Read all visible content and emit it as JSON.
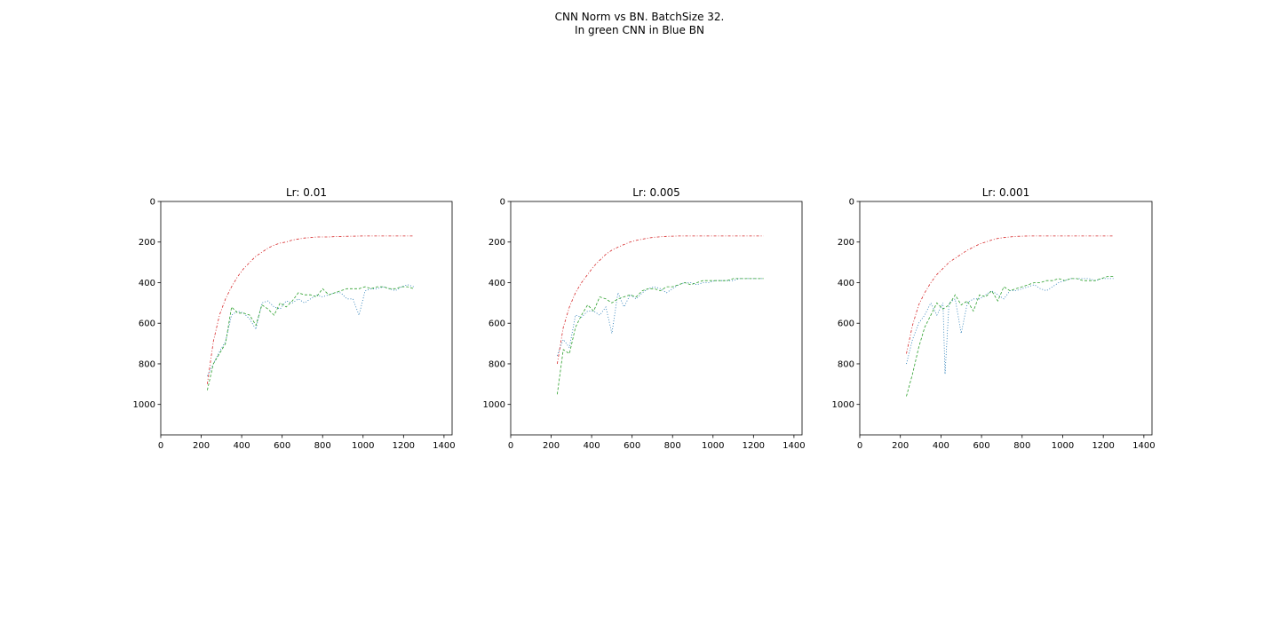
{
  "figure": {
    "title_line1": "CNN Norm vs BN. BatchSize 32.",
    "title_line2": "In green CNN in Blue BN"
  },
  "colors": {
    "bn": "#1f77b4",
    "cnn": "#2ca02c",
    "baseline": "#d62728",
    "ink": "#000000"
  },
  "chart_data": [
    {
      "type": "line",
      "title": "Lr: 0.01",
      "xlabel": "",
      "ylabel": "",
      "xlim": [
        0,
        1440
      ],
      "ylim": [
        1150,
        0
      ],
      "y_inverted": true,
      "xticks": [
        0,
        200,
        400,
        600,
        800,
        1000,
        1200,
        1400
      ],
      "yticks": [
        0,
        200,
        400,
        600,
        800,
        1000
      ],
      "grid": false,
      "series": [
        {
          "color_key": "bn",
          "style": "dotted",
          "x": [
            230,
            260,
            290,
            320,
            350,
            380,
            410,
            440,
            470,
            500,
            530,
            560,
            590,
            620,
            650,
            680,
            710,
            740,
            770,
            800,
            830,
            860,
            890,
            920,
            950,
            980,
            1010,
            1040,
            1070,
            1100,
            1130,
            1160,
            1190,
            1220,
            1250
          ],
          "y": [
            860,
            800,
            740,
            690,
            560,
            540,
            550,
            580,
            630,
            500,
            490,
            520,
            530,
            490,
            500,
            480,
            500,
            480,
            460,
            470,
            460,
            450,
            450,
            480,
            480,
            560,
            440,
            430,
            430,
            420,
            430,
            440,
            420,
            410,
            420
          ]
        },
        {
          "color_key": "cnn",
          "style": "dashed",
          "x": [
            230,
            260,
            290,
            320,
            350,
            380,
            410,
            440,
            470,
            500,
            530,
            560,
            590,
            620,
            650,
            680,
            710,
            740,
            770,
            800,
            830,
            860,
            890,
            920,
            950,
            980,
            1010,
            1040,
            1070,
            1100,
            1130,
            1160,
            1190,
            1220,
            1250
          ],
          "y": [
            930,
            800,
            750,
            700,
            520,
            550,
            550,
            560,
            610,
            510,
            530,
            560,
            500,
            520,
            490,
            450,
            460,
            460,
            470,
            430,
            460,
            450,
            440,
            430,
            430,
            430,
            420,
            430,
            420,
            420,
            430,
            430,
            420,
            420,
            430
          ]
        },
        {
          "color_key": "baseline",
          "style": "dashdot",
          "x": [
            230,
            260,
            290,
            320,
            350,
            380,
            410,
            440,
            470,
            500,
            530,
            560,
            590,
            620,
            650,
            680,
            710,
            740,
            770,
            800,
            830,
            860,
            900,
            950,
            1000,
            1050,
            1100,
            1150,
            1200,
            1250
          ],
          "y": [
            900,
            690,
            560,
            480,
            420,
            370,
            330,
            300,
            270,
            250,
            230,
            215,
            205,
            200,
            190,
            185,
            180,
            178,
            175,
            175,
            175,
            173,
            172,
            171,
            170,
            170,
            170,
            170,
            170,
            170
          ]
        }
      ]
    },
    {
      "type": "line",
      "title": "Lr: 0.005",
      "xlabel": "",
      "ylabel": "",
      "xlim": [
        0,
        1440
      ],
      "ylim": [
        1150,
        0
      ],
      "y_inverted": true,
      "xticks": [
        0,
        200,
        400,
        600,
        800,
        1000,
        1200,
        1400
      ],
      "yticks": [
        0,
        200,
        400,
        600,
        800,
        1000
      ],
      "grid": false,
      "series": [
        {
          "color_key": "bn",
          "style": "dotted",
          "x": [
            230,
            260,
            290,
            320,
            350,
            380,
            410,
            440,
            470,
            500,
            530,
            560,
            590,
            620,
            650,
            680,
            710,
            740,
            770,
            800,
            830,
            860,
            890,
            920,
            950,
            980,
            1010,
            1040,
            1070,
            1100,
            1130,
            1160,
            1190,
            1220,
            1250
          ],
          "y": [
            760,
            680,
            720,
            560,
            570,
            540,
            540,
            560,
            520,
            650,
            450,
            520,
            460,
            480,
            450,
            430,
            420,
            430,
            450,
            430,
            410,
            400,
            400,
            410,
            400,
            400,
            390,
            390,
            390,
            390,
            380,
            380,
            380,
            380,
            380
          ]
        },
        {
          "color_key": "cnn",
          "style": "dashed",
          "x": [
            230,
            260,
            290,
            320,
            350,
            380,
            410,
            440,
            470,
            500,
            530,
            560,
            590,
            620,
            650,
            680,
            710,
            740,
            770,
            800,
            830,
            860,
            890,
            920,
            950,
            980,
            1010,
            1040,
            1070,
            1100,
            1130,
            1160,
            1190,
            1220,
            1250
          ],
          "y": [
            950,
            730,
            750,
            620,
            560,
            510,
            540,
            470,
            480,
            500,
            480,
            470,
            460,
            470,
            440,
            430,
            430,
            440,
            420,
            420,
            410,
            400,
            410,
            400,
            390,
            390,
            390,
            390,
            390,
            380,
            380,
            380,
            380,
            380,
            380
          ]
        },
        {
          "color_key": "baseline",
          "style": "dashdot",
          "x": [
            230,
            260,
            290,
            320,
            350,
            380,
            410,
            440,
            470,
            500,
            530,
            560,
            590,
            620,
            650,
            680,
            710,
            740,
            770,
            800,
            830,
            860,
            900,
            950,
            1000,
            1050,
            1100,
            1150,
            1200,
            1250
          ],
          "y": [
            800,
            620,
            520,
            450,
            400,
            360,
            320,
            290,
            260,
            240,
            225,
            212,
            200,
            192,
            186,
            180,
            176,
            174,
            172,
            171,
            170,
            170,
            170,
            170,
            170,
            170,
            170,
            170,
            170,
            170
          ]
        }
      ]
    },
    {
      "type": "line",
      "title": "Lr: 0.001",
      "xlabel": "",
      "ylabel": "",
      "xlim": [
        0,
        1440
      ],
      "ylim": [
        1150,
        0
      ],
      "y_inverted": true,
      "xticks": [
        0,
        200,
        400,
        600,
        800,
        1000,
        1200,
        1400
      ],
      "yticks": [
        0,
        200,
        400,
        600,
        800,
        1000
      ],
      "grid": false,
      "series": [
        {
          "color_key": "bn",
          "style": "dotted",
          "x": [
            230,
            260,
            290,
            320,
            350,
            380,
            410,
            420,
            440,
            470,
            500,
            530,
            560,
            590,
            620,
            650,
            680,
            710,
            740,
            770,
            800,
            830,
            860,
            890,
            920,
            950,
            980,
            1010,
            1040,
            1070,
            1100,
            1130,
            1160,
            1190,
            1220,
            1250
          ],
          "y": [
            800,
            680,
            600,
            560,
            500,
            560,
            500,
            850,
            500,
            480,
            650,
            500,
            480,
            480,
            460,
            440,
            460,
            480,
            440,
            440,
            430,
            420,
            410,
            430,
            440,
            420,
            400,
            390,
            380,
            380,
            380,
            380,
            390,
            380,
            380,
            380
          ]
        },
        {
          "color_key": "cnn",
          "style": "dashed",
          "x": [
            230,
            260,
            290,
            320,
            350,
            380,
            410,
            440,
            470,
            500,
            530,
            560,
            590,
            620,
            650,
            680,
            710,
            740,
            770,
            800,
            830,
            860,
            890,
            920,
            950,
            980,
            1010,
            1040,
            1070,
            1100,
            1130,
            1160,
            1190,
            1220,
            1250
          ],
          "y": [
            960,
            850,
            720,
            620,
            560,
            500,
            530,
            510,
            460,
            510,
            490,
            540,
            460,
            470,
            440,
            490,
            420,
            440,
            430,
            420,
            410,
            400,
            400,
            390,
            390,
            380,
            390,
            380,
            380,
            390,
            390,
            390,
            380,
            370,
            370
          ]
        },
        {
          "color_key": "baseline",
          "style": "dashdot",
          "x": [
            230,
            260,
            290,
            320,
            350,
            380,
            410,
            440,
            470,
            500,
            530,
            560,
            590,
            620,
            650,
            680,
            710,
            740,
            770,
            800,
            830,
            860,
            900,
            950,
            1000,
            1050,
            1100,
            1150,
            1200,
            1250
          ],
          "y": [
            750,
            610,
            510,
            450,
            400,
            360,
            330,
            300,
            280,
            260,
            240,
            225,
            210,
            200,
            190,
            182,
            178,
            175,
            172,
            171,
            170,
            170,
            170,
            170,
            170,
            170,
            170,
            170,
            170,
            170
          ]
        }
      ]
    }
  ]
}
